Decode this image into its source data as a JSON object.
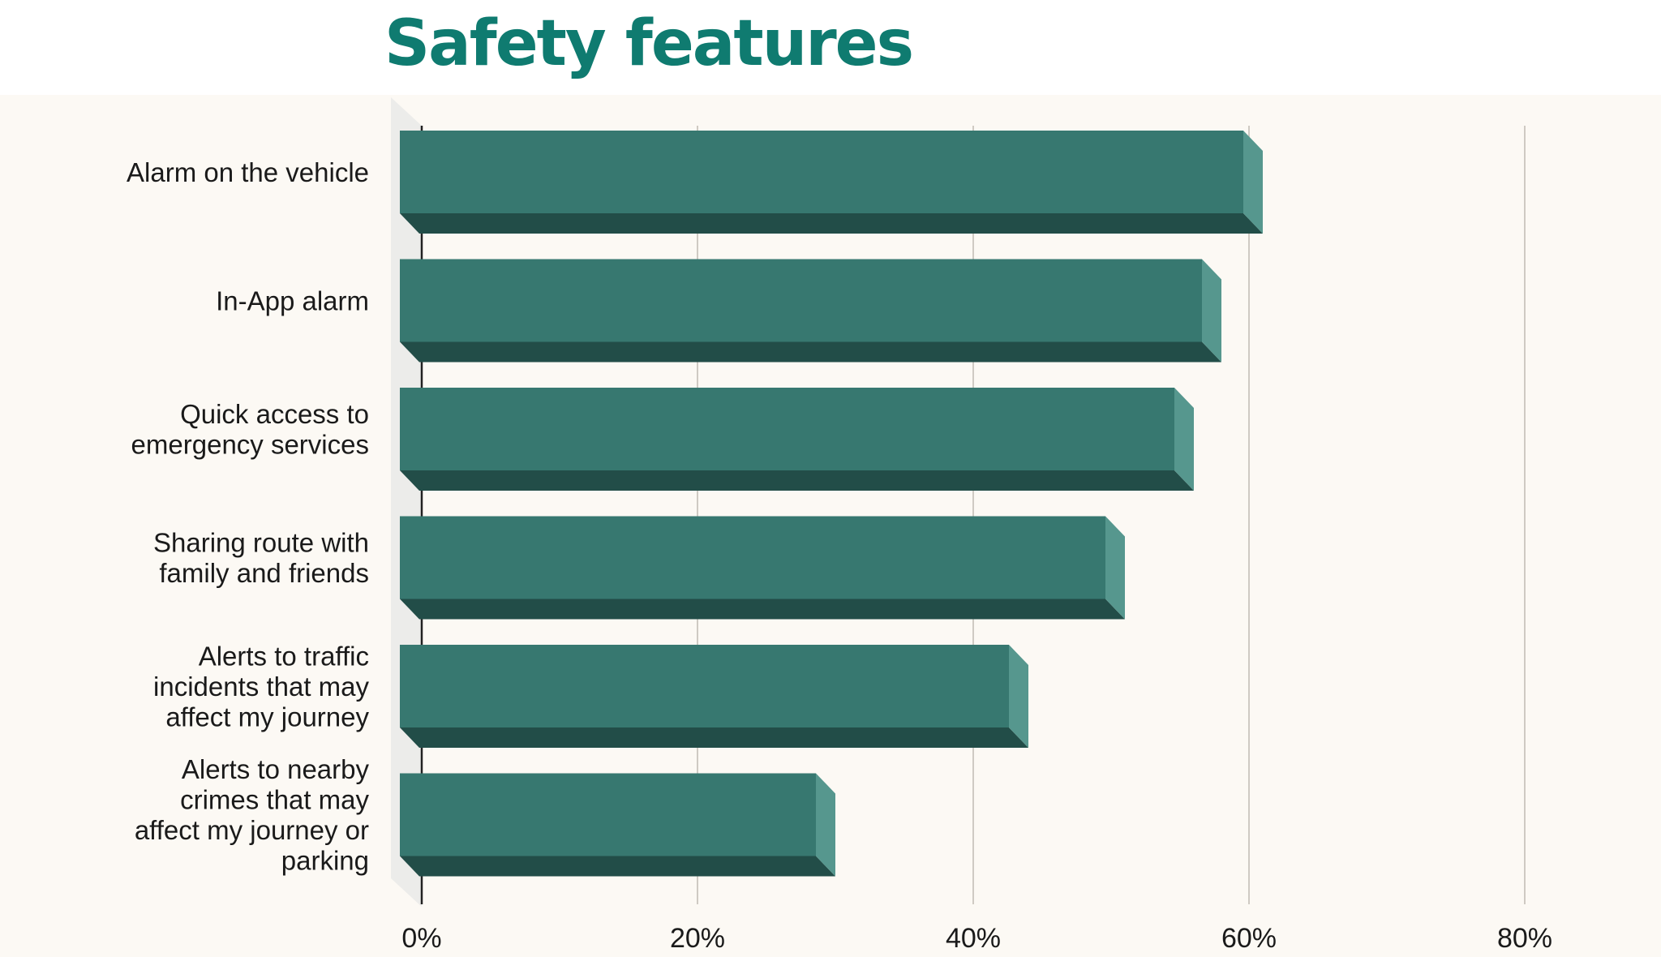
{
  "title": "Safety features",
  "chart_data": {
    "type": "bar",
    "orientation": "horizontal",
    "title": "Safety features",
    "categories": [
      [
        "Alarm on the vehicle"
      ],
      [
        "In-App alarm"
      ],
      [
        "Quick access to",
        "emergency services"
      ],
      [
        "Sharing route with",
        "family and friends"
      ],
      [
        "Alerts to traffic",
        "incidents that may",
        "affect my journey"
      ],
      [
        "Alerts to nearby",
        "crimes that may",
        "affect my journey or",
        "parking"
      ]
    ],
    "values": [
      61,
      58,
      56,
      51,
      44,
      30
    ],
    "xlim": [
      0,
      80
    ],
    "ticks": [
      0,
      20,
      40,
      60,
      80
    ],
    "tick_labels": [
      "0%",
      "20%",
      "40%",
      "60%",
      "80%"
    ],
    "grid": true,
    "colors": {
      "bar_front": "#377870",
      "bar_side": "#56978e",
      "bar_bottom": "#224d48",
      "grid": "#cfcac3",
      "axis": "#222222",
      "wall": "#ececea"
    }
  }
}
